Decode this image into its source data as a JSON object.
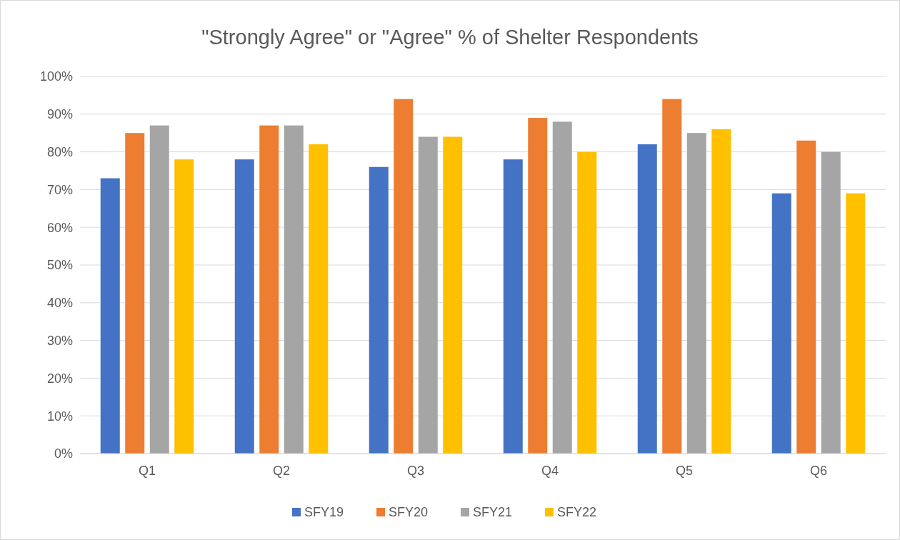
{
  "chart_data": {
    "type": "bar",
    "title": "\"Strongly Agree\" or \"Agree\" % of Shelter Respondents",
    "categories": [
      "Q1",
      "Q2",
      "Q3",
      "Q4",
      "Q5",
      "Q6"
    ],
    "series": [
      {
        "name": "SFY19",
        "color": "#4472c4",
        "values": [
          73,
          78,
          76,
          78,
          82,
          69
        ]
      },
      {
        "name": "SFY20",
        "color": "#ed7d31",
        "values": [
          85,
          87,
          94,
          89,
          94,
          83
        ]
      },
      {
        "name": "SFY21",
        "color": "#a5a5a5",
        "values": [
          87,
          87,
          84,
          88,
          85,
          80
        ]
      },
      {
        "name": "SFY22",
        "color": "#ffc000",
        "values": [
          78,
          82,
          84,
          80,
          86,
          69
        ]
      }
    ],
    "ylim": [
      0,
      100
    ],
    "yticks": [
      {
        "value": 0,
        "label": "0%"
      },
      {
        "value": 10,
        "label": "10%"
      },
      {
        "value": 20,
        "label": "20%"
      },
      {
        "value": 30,
        "label": "30%"
      },
      {
        "value": 40,
        "label": "40%"
      },
      {
        "value": 50,
        "label": "50%"
      },
      {
        "value": 60,
        "label": "60%"
      },
      {
        "value": 70,
        "label": "70%"
      },
      {
        "value": 80,
        "label": "80%"
      },
      {
        "value": 90,
        "label": "90%"
      },
      {
        "value": 100,
        "label": "100%"
      }
    ],
    "grid": "y",
    "legend": "bottom"
  }
}
